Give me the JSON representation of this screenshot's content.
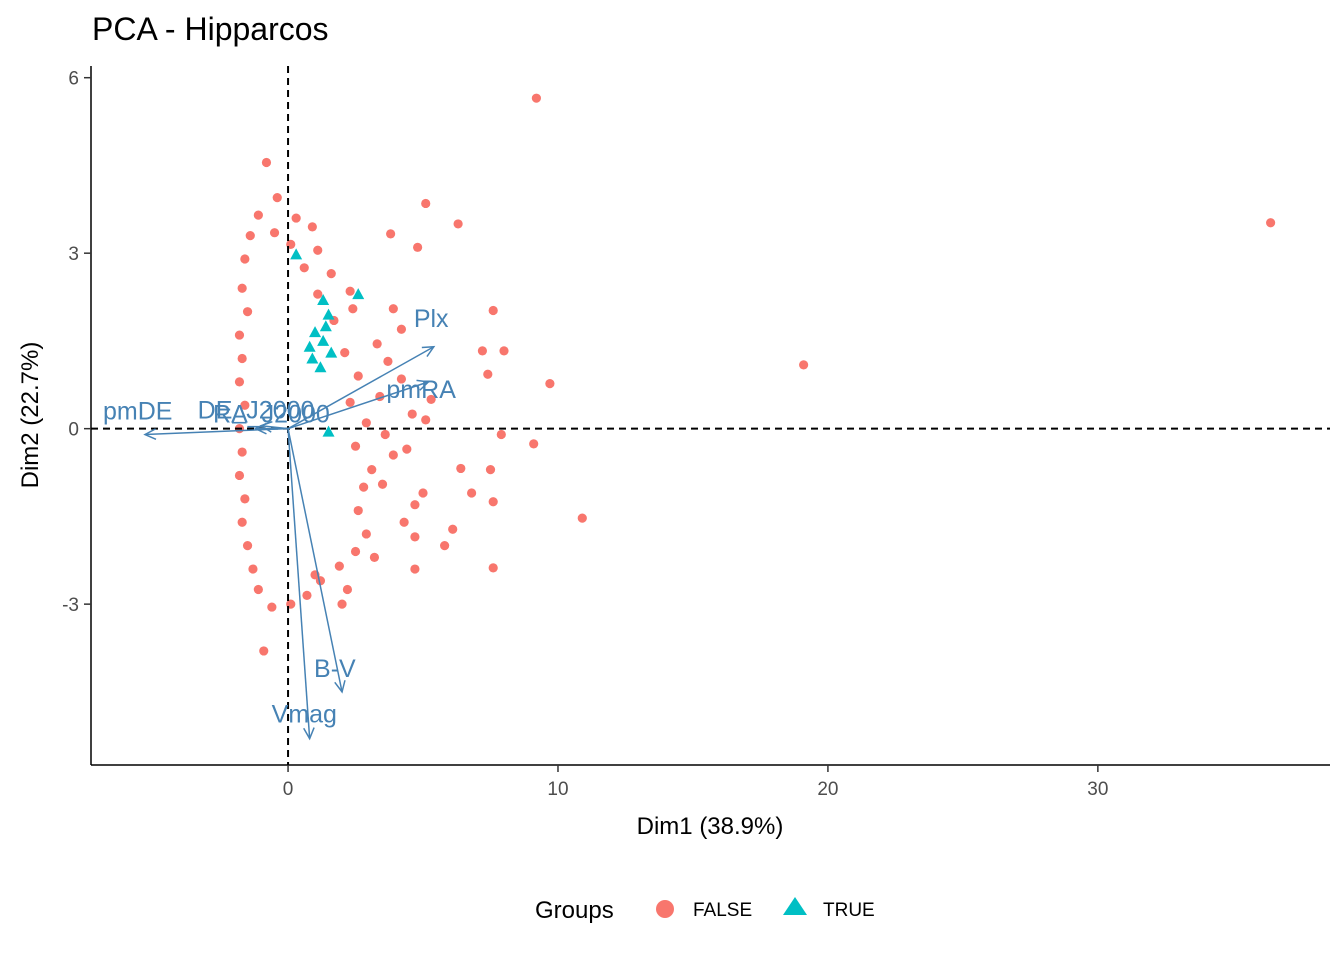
{
  "chart_data": {
    "type": "scatter",
    "title": "PCA - Hipparcos",
    "xlabel": "Dim1 (38.9%)",
    "ylabel": "Dim2 (22.7%)",
    "xlim": [
      -7.3,
      38.6
    ],
    "ylim": [
      -5.75,
      6.2
    ],
    "x_ticks": [
      0,
      10,
      20,
      30
    ],
    "x_tick_labels": [
      "0",
      "10",
      "20",
      "30"
    ],
    "y_ticks": [
      -3,
      0,
      3,
      6
    ],
    "y_tick_labels": [
      "-3",
      "0",
      "3",
      "6"
    ],
    "grid": false,
    "reference_lines": {
      "x": 0,
      "y": 0,
      "style": "dashed"
    },
    "legend": {
      "title": "Groups",
      "position": "bottom"
    },
    "groups": [
      {
        "name": "FALSE",
        "color": "#F8766D",
        "marker": "circle"
      },
      {
        "name": "TRUE",
        "color": "#00BFC4",
        "marker": "triangle"
      }
    ],
    "series": [
      {
        "name": "FALSE",
        "points": [
          [
            9.2,
            5.65
          ],
          [
            36.4,
            3.52
          ],
          [
            19.1,
            1.09
          ],
          [
            10.9,
            -1.53
          ],
          [
            9.7,
            0.77
          ],
          [
            9.1,
            -0.26
          ],
          [
            -0.8,
            4.55
          ],
          [
            5.1,
            3.85
          ],
          [
            6.3,
            3.5
          ],
          [
            3.8,
            3.33
          ],
          [
            4.8,
            3.1
          ],
          [
            7.6,
            2.02
          ],
          [
            7.2,
            1.33
          ],
          [
            8.0,
            1.33
          ],
          [
            7.4,
            0.93
          ],
          [
            7.9,
            -0.1
          ],
          [
            6.4,
            -0.68
          ],
          [
            7.5,
            -0.7
          ],
          [
            6.8,
            -1.1
          ],
          [
            7.6,
            -1.25
          ],
          [
            6.1,
            -1.72
          ],
          [
            4.7,
            -1.85
          ],
          [
            5.8,
            -2.0
          ],
          [
            7.6,
            -2.38
          ],
          [
            4.7,
            -2.4
          ],
          [
            -0.9,
            -3.8
          ],
          [
            2.2,
            -2.75
          ],
          [
            3.2,
            -2.2
          ],
          [
            4.3,
            -1.6
          ],
          [
            5.0,
            -1.1
          ],
          [
            4.4,
            -0.35
          ],
          [
            5.1,
            0.15
          ],
          [
            5.3,
            0.5
          ],
          [
            4.2,
            0.85
          ],
          [
            3.7,
            1.15
          ],
          [
            3.3,
            1.45
          ],
          [
            4.2,
            1.7
          ],
          [
            3.9,
            2.05
          ],
          [
            2.3,
            2.35
          ],
          [
            1.6,
            2.65
          ],
          [
            1.1,
            3.05
          ],
          [
            0.9,
            3.45
          ],
          [
            0.3,
            3.6
          ],
          [
            -0.4,
            3.95
          ],
          [
            -1.1,
            3.65
          ],
          [
            -1.4,
            3.3
          ],
          [
            -1.6,
            2.9
          ],
          [
            -1.7,
            2.4
          ],
          [
            -1.5,
            2.0
          ],
          [
            -1.8,
            1.6
          ],
          [
            -1.7,
            1.2
          ],
          [
            -1.8,
            0.8
          ],
          [
            -1.6,
            0.4
          ],
          [
            -1.8,
            0.0
          ],
          [
            -1.7,
            -0.4
          ],
          [
            -1.8,
            -0.8
          ],
          [
            -1.6,
            -1.2
          ],
          [
            -1.7,
            -1.6
          ],
          [
            -1.5,
            -2.0
          ],
          [
            -1.3,
            -2.4
          ],
          [
            -1.1,
            -2.75
          ],
          [
            -0.6,
            -3.05
          ],
          [
            0.1,
            -3.0
          ],
          [
            0.7,
            -2.85
          ],
          [
            1.2,
            -2.6
          ],
          [
            1.9,
            -2.35
          ],
          [
            2.5,
            -2.1
          ],
          [
            2.9,
            -1.8
          ],
          [
            2.6,
            -1.4
          ],
          [
            2.8,
            -1.0
          ],
          [
            3.1,
            -0.7
          ],
          [
            2.5,
            -0.3
          ],
          [
            2.9,
            0.1
          ],
          [
            2.3,
            0.45
          ],
          [
            2.6,
            0.9
          ],
          [
            2.1,
            1.3
          ],
          [
            1.7,
            1.85
          ],
          [
            1.1,
            2.3
          ],
          [
            0.6,
            2.75
          ],
          [
            0.1,
            3.15
          ],
          [
            -0.5,
            3.35
          ],
          [
            3.5,
            -0.95
          ],
          [
            3.9,
            -0.45
          ],
          [
            4.7,
            -1.3
          ],
          [
            3.4,
            0.55
          ],
          [
            2.4,
            2.05
          ],
          [
            4.6,
            0.25
          ],
          [
            3.6,
            -0.1
          ],
          [
            2.0,
            -3.0
          ],
          [
            1.0,
            -2.5
          ]
        ]
      },
      {
        "name": "TRUE",
        "points": [
          [
            0.3,
            2.98
          ],
          [
            2.6,
            2.3
          ],
          [
            1.3,
            2.2
          ],
          [
            1.5,
            1.95
          ],
          [
            1.0,
            1.65
          ],
          [
            1.3,
            1.5
          ],
          [
            1.6,
            1.3
          ],
          [
            0.9,
            1.2
          ],
          [
            1.2,
            1.05
          ],
          [
            1.5,
            -0.05
          ],
          [
            1.4,
            1.75
          ],
          [
            0.8,
            1.4
          ]
        ]
      }
    ],
    "variables": [
      {
        "name": "Plx",
        "x": 5.4,
        "y": 1.4
      },
      {
        "name": "pmRA",
        "x": 5.2,
        "y": 0.8
      },
      {
        "name": "pmDE",
        "x": -5.3,
        "y": -0.1
      },
      {
        "name": "DE_J2000",
        "x": -1.2,
        "y": 0.0
      },
      {
        "name": "RA_J2000",
        "x": -1.0,
        "y": 0.05
      },
      {
        "name": "B-V",
        "x": 2.0,
        "y": -4.5
      },
      {
        "name": "Vmag",
        "x": 0.8,
        "y": -5.3
      }
    ]
  }
}
